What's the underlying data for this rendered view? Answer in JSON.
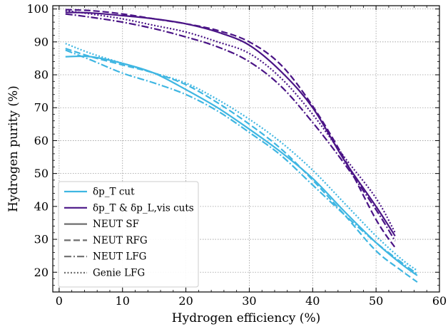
{
  "chart_data": {
    "type": "line",
    "xlabel": "Hydrogen efficiency (%)",
    "ylabel": "Hydrogen purity (%)",
    "xlim": [
      -1,
      60
    ],
    "ylim": [
      14,
      101
    ],
    "xticks": [
      "0",
      "10",
      "20",
      "30",
      "40",
      "50",
      "60"
    ],
    "yticks": [
      "20",
      "30",
      "40",
      "50",
      "60",
      "70",
      "80",
      "90",
      "100"
    ],
    "grid": true,
    "legend_position": "bottom-left",
    "colors": {
      "light": "#3fb6e2",
      "dark": "#4a1486",
      "gray": "#6e6e6e"
    },
    "legend": [
      {
        "label": "δp_T cut",
        "color": "#3fb6e2",
        "style": "solid"
      },
      {
        "label": "δp_T & δp_L,vis cuts",
        "color": "#4a1486",
        "style": "solid"
      },
      {
        "label": "NEUT SF",
        "color": "#6e6e6e",
        "style": "solid"
      },
      {
        "label": "NEUT RFG",
        "color": "#6e6e6e",
        "style": "dashed"
      },
      {
        "label": "NEUT LFG",
        "color": "#6e6e6e",
        "style": "dashdot"
      },
      {
        "label": "Genie LFG",
        "color": "#6e6e6e",
        "style": "dotted"
      }
    ],
    "series": [
      {
        "group": "δp_T cut",
        "model": "NEUT SF",
        "color": "#3fb6e2",
        "style": "solid",
        "x": [
          1,
          5,
          10,
          15,
          20,
          25,
          30,
          35,
          40,
          45,
          50,
          54,
          56.5
        ],
        "y": [
          85.5,
          85.5,
          83.5,
          80.5,
          75.5,
          70,
          63.5,
          56.5,
          48.5,
          38.5,
          29,
          22.5,
          19
        ]
      },
      {
        "group": "δp_T cut",
        "model": "NEUT RFG",
        "color": "#3fb6e2",
        "style": "dashed",
        "x": [
          1,
          5,
          10,
          15,
          20,
          25,
          30,
          35,
          40,
          45,
          50,
          54,
          56.5
        ],
        "y": [
          88,
          85.5,
          83,
          80.5,
          77,
          71.5,
          65,
          57.5,
          48,
          37.5,
          26.5,
          20.5,
          17
        ]
      },
      {
        "group": "δp_T cut",
        "model": "NEUT LFG",
        "color": "#3fb6e2",
        "style": "dashdot",
        "x": [
          1,
          5,
          10,
          15,
          20,
          25,
          30,
          35,
          40,
          45,
          50,
          54,
          56.5
        ],
        "y": [
          87.5,
          84.5,
          80.5,
          77.5,
          74,
          69,
          62.5,
          55.5,
          46.5,
          37.5,
          29,
          23,
          19.5
        ]
      },
      {
        "group": "δp_T cut",
        "model": "Genie LFG",
        "color": "#3fb6e2",
        "style": "dotted",
        "x": [
          1,
          5,
          10,
          15,
          20,
          25,
          30,
          35,
          40,
          45,
          50,
          54,
          56.5
        ],
        "y": [
          89.5,
          86.5,
          83.5,
          80.5,
          77.5,
          72.5,
          66.5,
          59.5,
          51,
          41,
          31,
          24,
          20.5
        ]
      },
      {
        "group": "δp_T & δp_L,vis cuts",
        "model": "NEUT SF",
        "color": "#4a1486",
        "style": "solid",
        "x": [
          1,
          5,
          10,
          15,
          20,
          25,
          30,
          35,
          40,
          45,
          50,
          53
        ],
        "y": [
          99,
          98.8,
          98,
          97,
          95.5,
          93,
          89,
          81,
          70,
          54,
          40,
          31
        ]
      },
      {
        "group": "δp_T & δp_L,vis cuts",
        "model": "NEUT RFG",
        "color": "#4a1486",
        "style": "dashed",
        "x": [
          1,
          5,
          10,
          15,
          20,
          25,
          30,
          35,
          40,
          45,
          50,
          53
        ],
        "y": [
          99.8,
          99.5,
          98.5,
          97,
          95.5,
          93.5,
          90,
          83,
          70.5,
          54.5,
          36,
          27.5
        ]
      },
      {
        "group": "δp_T & δp_L,vis cuts",
        "model": "NEUT LFG",
        "color": "#4a1486",
        "style": "dashdot",
        "x": [
          1,
          5,
          10,
          15,
          20,
          25,
          30,
          35,
          40,
          45,
          50,
          53
        ],
        "y": [
          98.5,
          97.5,
          96,
          94,
          91.5,
          88.5,
          84,
          76.5,
          65.5,
          53,
          39,
          29.5
        ]
      },
      {
        "group": "δp_T & δp_L,vis cuts",
        "model": "Genie LFG",
        "color": "#4a1486",
        "style": "dotted",
        "x": [
          1,
          5,
          10,
          15,
          20,
          25,
          30,
          35,
          40,
          45,
          50,
          53
        ],
        "y": [
          99.5,
          98.5,
          97,
          95,
          93,
          90,
          86.5,
          79,
          68,
          55,
          42.5,
          32
        ]
      }
    ]
  }
}
